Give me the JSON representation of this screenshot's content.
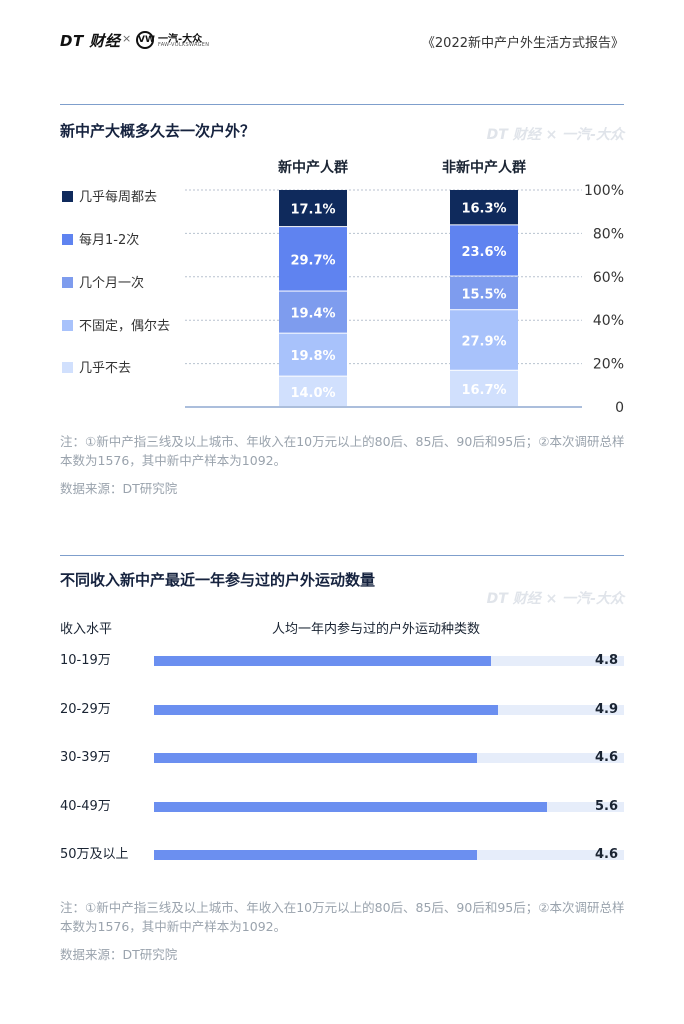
{
  "header": {
    "brand": "DT 财经",
    "separator": "×",
    "partner_mark": "VW",
    "partner_name": "一汽-大众",
    "partner_sub": "FAW-VOLKSWAGEN",
    "report_title": "《2022新中产户外生活方式报告》"
  },
  "watermark": "DT 财经 × 一汽-大众",
  "section1": {
    "title": "新中产大概多久去一次户外？",
    "note": "注：①新中产指三线及以上城市、年收入在10万元以上的80后、85后、90后和95后；②本次调研总样本数为1576，其中新中产样本为1092。",
    "source": "数据来源：DT研究院"
  },
  "section2": {
    "title": "不同收入新中产最近一年参与过的户外运动数量",
    "category_header": "收入水平",
    "value_header": "人均一年内参与过的户外运动种类数",
    "note": "注：①新中产指三线及以上城市、年收入在10万元以上的80后、85后、90后和95后；②本次调研总样本数为1576，其中新中产样本为1092。",
    "source": "数据来源：DT研究院"
  },
  "chart_data": [
    {
      "type": "bar",
      "stacked": true,
      "categories": [
        "新中产人群",
        "非新中产人群"
      ],
      "series": [
        {
          "name": "几乎不去",
          "values": [
            14.0,
            16.7
          ],
          "labels": [
            "14.0%",
            "16.7%"
          ],
          "color": "#d1e0fd",
          "text_color": "#ffffff"
        },
        {
          "name": "不固定，偶尔去",
          "values": [
            19.8,
            27.9
          ],
          "labels": [
            "19.8%",
            "27.9%"
          ],
          "color": "#a8c2fb",
          "text_color": "#ffffff"
        },
        {
          "name": "几个月一次",
          "values": [
            19.4,
            15.5
          ],
          "labels": [
            "19.4%",
            "15.5%"
          ],
          "color": "#7e9cee",
          "text_color": "#ffffff"
        },
        {
          "name": "每月1-2次",
          "values": [
            29.7,
            23.6
          ],
          "labels": [
            "29.7%",
            "23.6%"
          ],
          "color": "#5f83f0",
          "text_color": "#ffffff"
        },
        {
          "name": "几乎每周都去",
          "values": [
            17.1,
            16.3
          ],
          "labels": [
            "17.1%",
            "16.3%"
          ],
          "color": "#0f2a5c",
          "text_color": "#ffffff"
        }
      ],
      "legend_order": [
        "几乎每周都去",
        "每月1-2次",
        "几个月一次",
        "不固定，偶尔去",
        "几乎不去"
      ],
      "yticks": [
        "0",
        "20%",
        "40%",
        "60%",
        "80%",
        "100%"
      ],
      "ylim": [
        0,
        100
      ],
      "grid": true,
      "legend": "left"
    },
    {
      "type": "bar",
      "orientation": "horizontal",
      "categories": [
        "10-19万",
        "20-29万",
        "30-39万",
        "40-49万",
        "50万及以上"
      ],
      "values": [
        4.8,
        4.9,
        4.6,
        5.6,
        4.6
      ],
      "labels": [
        "4.8",
        "4.9",
        "4.6",
        "5.6",
        "4.6"
      ],
      "xlim": [
        0,
        6.7
      ],
      "color": "#6b8ff0",
      "track_color": "#e6edfa"
    }
  ]
}
